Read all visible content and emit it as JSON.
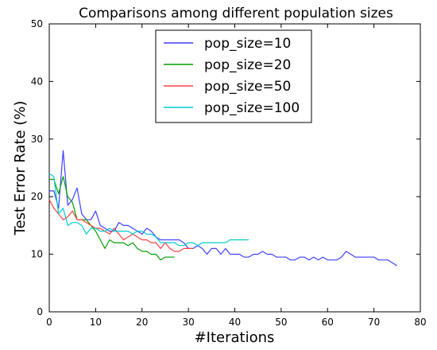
{
  "chart_data": {
    "type": "line",
    "title": "Comparisons among different population sizes",
    "xlabel": "#Iterations",
    "ylabel": "Test Error Rate (%)",
    "xlim": [
      0,
      80
    ],
    "ylim": [
      0,
      50
    ],
    "xticks": [
      "0",
      "10",
      "20",
      "30",
      "40",
      "50",
      "60",
      "70",
      "80"
    ],
    "yticks": [
      "0",
      "10",
      "20",
      "30",
      "40",
      "50"
    ],
    "grid": false,
    "legend_position": "top-center",
    "series": [
      {
        "name": "pop_size=10",
        "color": "#4040ff",
        "x": [
          0,
          1,
          2,
          3,
          4,
          5,
          6,
          7,
          8,
          9,
          10,
          11,
          12,
          13,
          14,
          15,
          16,
          17,
          18,
          19,
          20,
          21,
          22,
          23,
          24,
          25,
          26,
          27,
          28,
          29,
          30,
          31,
          32,
          33,
          34,
          35,
          36,
          37,
          38,
          39,
          40,
          41,
          42,
          43,
          44,
          45,
          46,
          47,
          48,
          49,
          50,
          51,
          52,
          53,
          54,
          55,
          56,
          57,
          58,
          59,
          60,
          61,
          62,
          63,
          64,
          65,
          66,
          67,
          68,
          69,
          70,
          71,
          72,
          73,
          74,
          75
        ],
        "y": [
          21,
          21,
          18,
          28,
          18.5,
          19.5,
          21.5,
          17,
          16,
          16,
          17.5,
          15,
          14.5,
          14,
          14,
          15.5,
          15,
          15,
          14.5,
          14,
          13.5,
          14.5,
          14,
          13,
          12.5,
          12.5,
          12.5,
          12.5,
          12.5,
          12,
          11,
          11,
          11.5,
          11,
          10,
          11,
          11,
          10,
          11,
          10,
          10,
          10,
          9.5,
          9.5,
          10,
          10,
          10.5,
          10,
          10,
          9.5,
          9.5,
          9.5,
          9,
          9,
          9.5,
          9.5,
          9,
          9.5,
          9,
          9.5,
          9,
          9,
          9,
          9.5,
          10.5,
          10,
          9.5,
          9.5,
          9.5,
          9.5,
          9.5,
          9,
          9,
          9,
          8.5,
          8
        ]
      },
      {
        "name": "pop_size=20",
        "color": "#00a000",
        "x": [
          0,
          1,
          2,
          3,
          4,
          5,
          6,
          7,
          8,
          9,
          10,
          11,
          12,
          13,
          14,
          15,
          16,
          17,
          18,
          19,
          20,
          21,
          22,
          23,
          24,
          25,
          26,
          27
        ],
        "y": [
          23,
          23,
          20.5,
          23.5,
          20,
          19,
          16,
          16,
          16,
          15,
          14,
          12.5,
          11,
          12.5,
          12,
          12,
          12,
          11.5,
          12,
          11,
          10.5,
          10.5,
          10,
          10,
          9,
          9.5,
          9.5,
          9.5
        ]
      },
      {
        "name": "pop_size=50",
        "color": "#ff4040",
        "x": [
          0,
          1,
          2,
          3,
          4,
          5,
          6,
          7,
          8,
          9,
          10,
          11,
          12,
          13,
          14,
          15,
          16,
          17,
          18,
          19,
          20,
          21,
          22,
          23,
          24,
          25,
          26,
          27,
          28,
          29,
          30,
          31
        ],
        "y": [
          19.5,
          18,
          17,
          16,
          16.5,
          17.5,
          16,
          16,
          15.5,
          15,
          14.5,
          14.5,
          14,
          13.5,
          14.5,
          13.5,
          12.5,
          13,
          13.5,
          13,
          12.5,
          12.5,
          12,
          12,
          11,
          12,
          11,
          10.5,
          10.5,
          11,
          11,
          11
        ]
      },
      {
        "name": "pop_size=100",
        "color": "#00cccc",
        "x": [
          0,
          1,
          2,
          3,
          4,
          5,
          6,
          7,
          8,
          9,
          10,
          11,
          12,
          13,
          14,
          15,
          16,
          17,
          18,
          19,
          20,
          21,
          22,
          23,
          24,
          25,
          26,
          27,
          28,
          29,
          30,
          31,
          32,
          33,
          34,
          35,
          36,
          37,
          38,
          39,
          40,
          41,
          42,
          43
        ],
        "y": [
          24,
          23.5,
          17,
          18,
          15,
          15.5,
          15.5,
          15,
          13.5,
          14.5,
          14.5,
          14,
          14,
          14.5,
          14,
          14,
          14,
          14,
          13.5,
          14,
          14,
          13.5,
          13.5,
          13,
          12,
          12,
          12,
          12,
          11.5,
          11.5,
          12,
          12,
          11.5,
          12,
          12,
          12,
          12,
          12,
          12,
          12.5,
          12.5,
          12.5,
          12.5,
          12.5
        ]
      }
    ]
  }
}
